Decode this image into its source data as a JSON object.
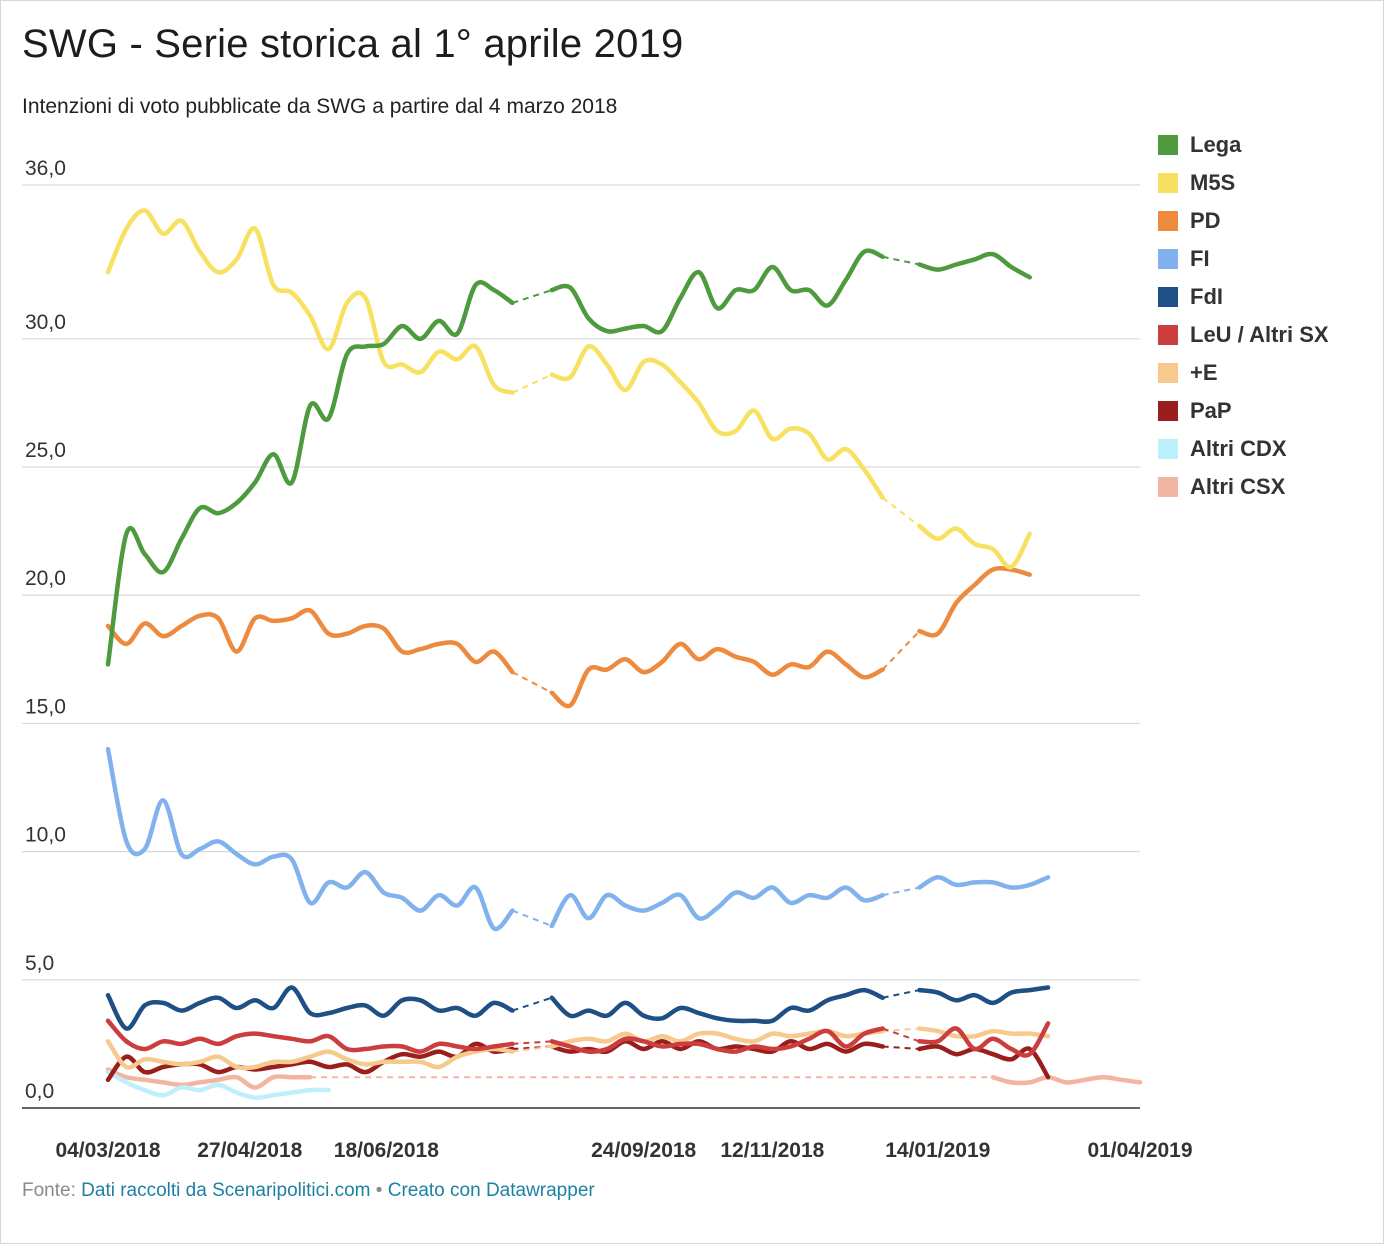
{
  "title": "SWG - Serie storica al 1° aprile 2019",
  "subtitle": "Intenzioni di voto pubblicate da SWG a partire dal 4 marzo 2018",
  "footer": {
    "prefix": "Fonte: ",
    "source": "Dati raccolti da Scenaripolitici.com",
    "separator": " • ",
    "credit": "Creato con Datawrapper"
  },
  "chart_data": {
    "type": "line",
    "title": "SWG - Serie storica al 1° aprile 2019",
    "ylim": [
      0,
      36
    ],
    "yticks": [
      0,
      5,
      10,
      15,
      20,
      25,
      30,
      36
    ],
    "ytick_labels": [
      "0,0",
      "5,0",
      "10,0",
      "15,0",
      "20,0",
      "25,0",
      "30,0",
      "36,0"
    ],
    "xlim": [
      "2018-03-04",
      "2019-04-01"
    ],
    "xticks": [
      "2018-03-04",
      "2018-04-27",
      "2018-06-18",
      "2018-09-24",
      "2018-11-12",
      "2019-01-14",
      "2019-04-01"
    ],
    "xtick_labels": [
      "04/03/2018",
      "27/04/2018",
      "18/06/2018",
      "24/09/2018",
      "12/11/2018",
      "14/01/2019",
      "01/04/2019"
    ],
    "gap": [
      "2018-08-05",
      "2018-08-20"
    ],
    "grid": true,
    "legend_position": "right",
    "x": [
      "2018-03-04",
      "2018-03-11",
      "2018-03-18",
      "2018-03-25",
      "2018-04-01",
      "2018-04-08",
      "2018-04-15",
      "2018-04-22",
      "2018-04-29",
      "2018-05-06",
      "2018-05-13",
      "2018-05-20",
      "2018-05-27",
      "2018-06-03",
      "2018-06-10",
      "2018-06-17",
      "2018-06-24",
      "2018-07-01",
      "2018-07-08",
      "2018-07-15",
      "2018-07-22",
      "2018-07-29",
      "2018-08-05",
      "2018-08-20",
      "2018-08-27",
      "2018-09-03",
      "2018-09-10",
      "2018-09-17",
      "2018-09-24",
      "2018-10-01",
      "2018-10-08",
      "2018-10-15",
      "2018-10-22",
      "2018-10-29",
      "2018-11-05",
      "2018-11-12",
      "2018-11-19",
      "2018-11-26",
      "2018-12-03",
      "2018-12-10",
      "2018-12-17",
      "2018-12-24",
      "2019-01-07",
      "2019-01-14",
      "2019-01-21",
      "2019-01-28",
      "2019-02-04",
      "2019-02-11",
      "2019-02-18",
      "2019-02-25",
      "2019-03-04",
      "2019-03-11",
      "2019-03-18",
      "2019-03-25",
      "2019-04-01"
    ],
    "series": [
      {
        "name": "Lega",
        "color": "#4e9a3e",
        "values": [
          17.3,
          22.4,
          21.6,
          20.9,
          22.2,
          23.4,
          23.2,
          23.6,
          24.4,
          25.5,
          24.4,
          27.4,
          26.9,
          29.4,
          29.7,
          29.8,
          30.5,
          30.0,
          30.7,
          30.2,
          32.1,
          31.9,
          31.4,
          31.9,
          32.0,
          30.8,
          30.3,
          30.4,
          30.5,
          30.3,
          31.6,
          32.6,
          31.2,
          31.9,
          31.9,
          32.8,
          31.9,
          31.9,
          31.3,
          32.3,
          33.4,
          33.2,
          32.9,
          32.7,
          32.9,
          33.1,
          33.3,
          32.8,
          32.4,
          null,
          null,
          null,
          null,
          null,
          null
        ]
      },
      {
        "name": "M5S",
        "color": "#f8e160",
        "values": [
          32.6,
          34.3,
          35.0,
          34.1,
          34.6,
          33.4,
          32.6,
          33.1,
          34.3,
          32.1,
          31.8,
          30.9,
          29.6,
          31.4,
          31.6,
          29.1,
          29.0,
          28.7,
          29.5,
          29.2,
          29.7,
          28.2,
          27.9,
          28.6,
          28.5,
          29.7,
          29.0,
          28.0,
          29.1,
          29.0,
          28.3,
          27.5,
          26.4,
          26.4,
          27.2,
          26.1,
          26.5,
          26.3,
          25.3,
          25.7,
          24.9,
          23.8,
          22.7,
          22.2,
          22.6,
          22.0,
          21.8,
          21.1,
          22.4,
          null,
          null,
          null,
          null,
          null,
          null
        ]
      },
      {
        "name": "PD",
        "color": "#ee8a3d",
        "values": [
          18.8,
          18.1,
          18.9,
          18.4,
          18.8,
          19.2,
          19.1,
          17.8,
          19.1,
          19.0,
          19.1,
          19.4,
          18.5,
          18.5,
          18.8,
          18.7,
          17.8,
          17.9,
          18.1,
          18.1,
          17.4,
          17.8,
          17.0,
          16.2,
          15.7,
          17.1,
          17.1,
          17.5,
          17.0,
          17.4,
          18.1,
          17.5,
          17.9,
          17.6,
          17.4,
          16.9,
          17.3,
          17.2,
          17.8,
          17.3,
          16.8,
          17.1,
          18.6,
          18.5,
          19.7,
          20.4,
          21.0,
          21.0,
          20.8,
          null,
          null,
          null,
          null,
          null,
          null
        ]
      },
      {
        "name": "FI",
        "color": "#82b2ed",
        "values": [
          14.0,
          10.4,
          10.1,
          12.0,
          9.9,
          10.1,
          10.4,
          9.9,
          9.5,
          9.8,
          9.7,
          8.0,
          8.8,
          8.6,
          9.2,
          8.4,
          8.2,
          7.7,
          8.3,
          7.9,
          8.6,
          7.0,
          7.7,
          7.1,
          8.3,
          7.4,
          8.3,
          7.9,
          7.7,
          8.0,
          8.3,
          7.4,
          7.8,
          8.4,
          8.2,
          8.6,
          8.0,
          8.3,
          8.2,
          8.6,
          8.1,
          8.3,
          8.6,
          9.0,
          8.7,
          8.8,
          8.8,
          8.6,
          8.7,
          9.0,
          null,
          null,
          null,
          null,
          null
        ]
      },
      {
        "name": "FdI",
        "color": "#1e4f85",
        "values": [
          4.4,
          3.1,
          4.0,
          4.1,
          3.8,
          4.1,
          4.3,
          3.9,
          4.2,
          3.9,
          4.7,
          3.7,
          3.7,
          3.9,
          4.0,
          3.6,
          4.2,
          4.2,
          3.8,
          3.9,
          3.6,
          4.1,
          3.8,
          4.3,
          3.6,
          3.8,
          3.6,
          4.1,
          3.6,
          3.5,
          3.9,
          3.7,
          3.5,
          3.4,
          3.4,
          3.4,
          3.9,
          3.8,
          4.2,
          4.4,
          4.6,
          4.3,
          4.6,
          4.5,
          4.2,
          4.4,
          4.1,
          4.5,
          4.6,
          4.7,
          null,
          null,
          null,
          null,
          null
        ]
      },
      {
        "name": "LeU / Altri SX",
        "color": "#cc3e3e",
        "values": [
          3.4,
          2.6,
          2.3,
          2.6,
          2.5,
          2.7,
          2.5,
          2.8,
          2.9,
          2.8,
          2.7,
          2.6,
          2.8,
          2.3,
          2.3,
          2.4,
          2.4,
          2.2,
          2.5,
          2.4,
          2.3,
          2.4,
          2.5,
          2.6,
          2.4,
          2.2,
          2.3,
          2.7,
          2.6,
          2.4,
          2.5,
          2.5,
          2.3,
          2.2,
          2.4,
          2.3,
          2.4,
          2.7,
          3.0,
          2.4,
          2.9,
          3.1,
          2.6,
          2.6,
          3.1,
          2.3,
          2.7,
          2.3,
          2.1,
          3.3,
          null,
          null,
          null,
          null,
          null
        ]
      },
      {
        "name": "+E",
        "color": "#f6c98c",
        "values": [
          2.6,
          1.6,
          1.9,
          1.8,
          1.7,
          1.8,
          2.0,
          1.6,
          1.6,
          1.8,
          1.8,
          2.0,
          2.2,
          1.9,
          1.7,
          1.8,
          1.8,
          1.8,
          1.6,
          2.0,
          2.2,
          2.3,
          2.2,
          2.4,
          2.6,
          2.7,
          2.6,
          2.9,
          2.6,
          2.8,
          2.6,
          2.9,
          2.9,
          2.7,
          2.6,
          2.9,
          2.8,
          2.9,
          3.0,
          2.8,
          2.9,
          3.0,
          3.1,
          3.0,
          2.8,
          2.8,
          3.0,
          2.9,
          2.9,
          2.8,
          null,
          null,
          null,
          null,
          null
        ]
      },
      {
        "name": "PaP",
        "color": "#9a1e1b",
        "values": [
          1.1,
          2.0,
          1.4,
          1.6,
          1.7,
          1.7,
          1.4,
          1.6,
          1.5,
          1.6,
          1.7,
          1.8,
          1.6,
          1.7,
          1.4,
          1.8,
          2.1,
          2.0,
          2.2,
          2.0,
          2.5,
          2.2,
          2.3,
          2.4,
          2.2,
          2.3,
          2.2,
          2.6,
          2.3,
          2.6,
          2.3,
          2.6,
          2.3,
          2.4,
          2.3,
          2.2,
          2.6,
          2.3,
          2.5,
          2.2,
          2.5,
          2.4,
          2.3,
          2.4,
          2.1,
          2.3,
          2.1,
          1.9,
          2.3,
          1.2,
          null,
          null,
          null,
          null,
          null
        ]
      },
      {
        "name": "Altri CDX",
        "color": "#bdf0fb",
        "values": [
          1.4,
          1.0,
          0.7,
          0.5,
          0.8,
          0.7,
          0.9,
          0.6,
          0.4,
          0.5,
          0.6,
          0.7,
          0.7,
          null,
          null,
          null,
          null,
          null,
          null,
          null,
          null,
          null,
          null,
          null,
          null,
          null,
          null,
          null,
          null,
          null,
          null,
          null,
          null,
          null,
          null,
          null,
          null,
          null,
          null,
          null,
          null,
          null,
          null,
          null,
          null,
          null,
          null,
          null,
          null,
          null,
          null,
          null,
          null,
          null,
          null
        ]
      },
      {
        "name": "Altri CSX",
        "color": "#f2b5a2",
        "values": [
          1.5,
          1.2,
          1.1,
          1.0,
          0.9,
          1.0,
          1.1,
          1.2,
          0.8,
          1.2,
          1.2,
          1.2,
          null,
          null,
          null,
          null,
          null,
          null,
          null,
          null,
          null,
          null,
          null,
          null,
          null,
          null,
          null,
          null,
          null,
          null,
          null,
          null,
          null,
          null,
          null,
          null,
          null,
          null,
          null,
          null,
          null,
          null,
          null,
          null,
          null,
          null,
          1.2,
          1.0,
          1.0,
          1.2,
          1.0,
          1.1,
          1.2,
          1.1,
          1.0
        ]
      }
    ]
  }
}
